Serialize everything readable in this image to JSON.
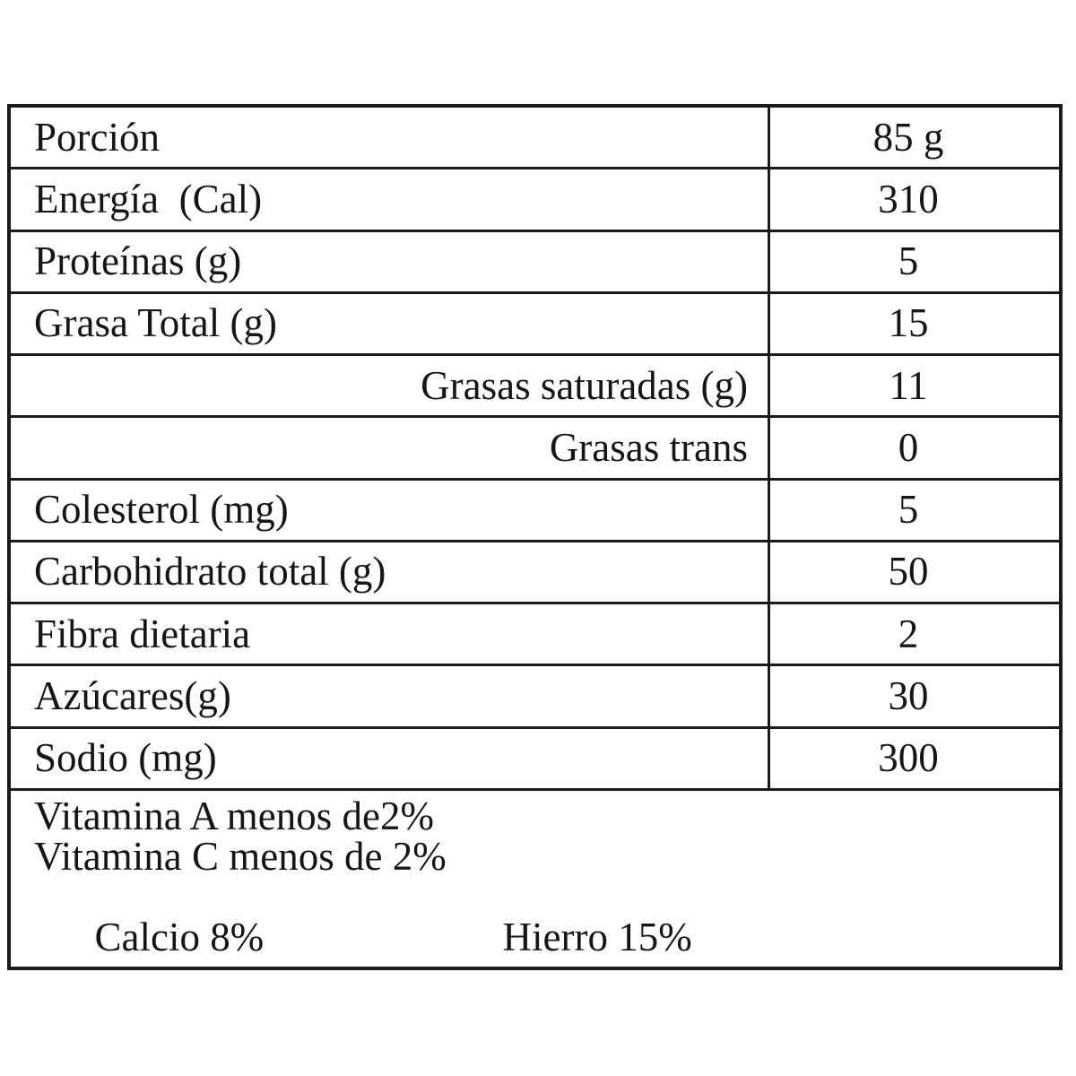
{
  "table": {
    "rows": [
      {
        "label": "Porción",
        "value": "85 g",
        "align": "left"
      },
      {
        "label": "Energía  (Cal)",
        "value": "310",
        "align": "left"
      },
      {
        "label": "Proteínas (g)",
        "value": "5",
        "align": "left"
      },
      {
        "label": "Grasa Total (g)",
        "value": "15",
        "align": "left"
      },
      {
        "label": "Grasas saturadas (g)",
        "value": "11",
        "align": "right"
      },
      {
        "label": "Grasas trans",
        "value": "0",
        "align": "right"
      },
      {
        "label": "Colesterol (mg)",
        "value": "5",
        "align": "left"
      },
      {
        "label": "Carbohidrato total (g)",
        "value": "50",
        "align": "left"
      },
      {
        "label": "Fibra dietaria",
        "value": "2",
        "align": "left"
      },
      {
        "label": "Azúcares(g)",
        "value": "30",
        "align": "left"
      },
      {
        "label": "Sodio (mg)",
        "value": "300",
        "align": "left"
      }
    ],
    "footer_lines": [
      "Vitamina A menos de2%",
      "Vitamina C menos de 2%"
    ],
    "footer_split": {
      "left": "Calcio 8%",
      "right": "Hierro 15%"
    }
  },
  "colors": {
    "border": "#1a1a1a",
    "text": "#161616",
    "background": "#ffffff"
  }
}
